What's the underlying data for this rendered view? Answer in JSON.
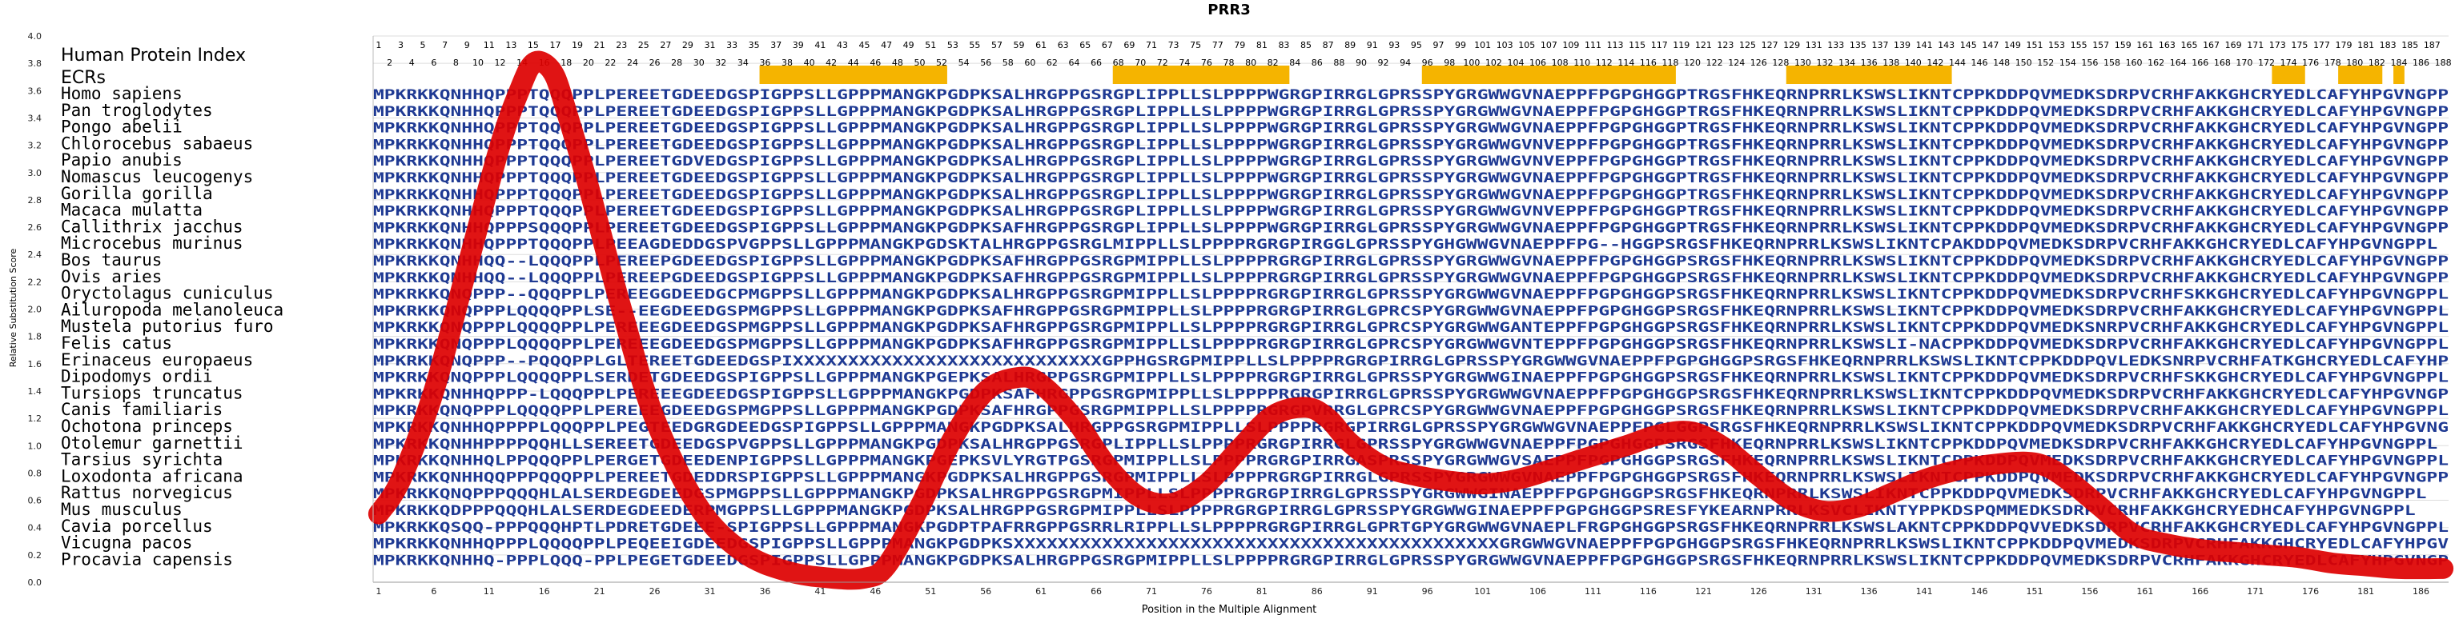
{
  "title": "PRR3",
  "xlabel": "Position in the Multiple Alignment",
  "ylabel": "Relative Substitution Score",
  "index_label": "Human Protein Index",
  "ecr_label": "ECRs",
  "colors": {
    "curve": "#dd0000",
    "ecr": "#f5b400",
    "seq_conserved": "#1f3a93",
    "seq_variable": "#1f63c6",
    "grid": "#dddddd"
  },
  "chart_data": {
    "type": "line",
    "title": "PRR3",
    "xlabel": "Position in the Multiple Alignment",
    "ylabel": "Relative Substitution Score",
    "ylim": [
      0,
      4.0
    ],
    "xlim": [
      1,
      188
    ],
    "yticks": [
      "0.0",
      "0.2",
      "0.4",
      "0.6",
      "0.8",
      "1.0",
      "1.2",
      "1.4",
      "1.6",
      "1.8",
      "2.0",
      "2.2",
      "2.4",
      "2.6",
      "2.8",
      "3.0",
      "3.2",
      "3.4",
      "3.6",
      "3.8",
      "4.0"
    ],
    "xticks": [
      1,
      6,
      11,
      16,
      21,
      26,
      31,
      36,
      41,
      46,
      51,
      56,
      61,
      66,
      71,
      76,
      81,
      86,
      91,
      96,
      101,
      106,
      111,
      116,
      121,
      126,
      131,
      136,
      141,
      146,
      151,
      156,
      161,
      166,
      171,
      176,
      181,
      186
    ],
    "grid": "on",
    "series": [
      {
        "x": [
          1,
          3,
          6,
          9,
          12,
          14,
          15,
          16,
          17,
          18,
          20,
          23,
          26,
          30,
          34,
          38,
          42,
          45,
          47,
          50,
          53,
          56,
          59,
          61,
          64,
          67,
          70,
          73,
          76,
          79,
          82,
          85,
          87,
          89,
          92,
          95,
          98,
          101,
          104,
          107,
          110,
          114,
          117,
          120,
          123,
          126,
          129,
          132,
          135,
          138,
          141,
          144,
          147,
          150,
          152,
          154,
          157,
          160,
          163,
          166,
          169,
          172,
          175,
          178,
          181,
          184,
          188
        ],
        "y": [
          0.5,
          0.75,
          1.4,
          2.3,
          3.2,
          3.65,
          3.8,
          3.8,
          3.7,
          3.45,
          2.9,
          2.0,
          1.2,
          0.55,
          0.22,
          0.08,
          0.03,
          0.03,
          0.12,
          0.55,
          1.05,
          1.4,
          1.5,
          1.45,
          1.2,
          0.85,
          0.62,
          0.58,
          0.72,
          0.98,
          1.22,
          1.28,
          1.2,
          1.02,
          0.85,
          0.78,
          0.74,
          0.72,
          0.75,
          0.82,
          0.9,
          1.0,
          1.08,
          1.1,
          0.98,
          0.78,
          0.6,
          0.52,
          0.55,
          0.65,
          0.75,
          0.82,
          0.86,
          0.88,
          0.85,
          0.75,
          0.55,
          0.35,
          0.28,
          0.24,
          0.22,
          0.2,
          0.18,
          0.14,
          0.12,
          0.1,
          0.1
        ]
      }
    ],
    "ecrs": [
      [
        36,
        52
      ],
      [
        68,
        83
      ],
      [
        96,
        118
      ],
      [
        129,
        143
      ],
      [
        173,
        175
      ],
      [
        179,
        182
      ],
      [
        184,
        184
      ]
    ]
  },
  "alignment": {
    "species": [
      "Homo sapiens",
      "Pan troglodytes",
      "Pongo abelii",
      "Chlorocebus sabaeus",
      "Papio anubis",
      "Nomascus leucogenys",
      "Gorilla gorilla",
      "Macaca mulatta",
      "Callithrix jacchus",
      "Microcebus murinus",
      "Bos taurus",
      "Ovis aries",
      "Oryctolagus cuniculus",
      "Ailuropoda melanoleuca",
      "Mustela putorius furo",
      "Felis catus",
      "Erinaceus europaeus",
      "Dipodomys ordii",
      "Tursiops truncatus",
      "Canis familiaris",
      "Ochotona princeps",
      "Otolemur garnettii",
      "Tarsius syrichta",
      "Loxodonta africana",
      "Rattus norvegicus",
      "Mus musculus",
      "Cavia porcellus",
      "Vicugna pacos",
      "Procavia capensis"
    ],
    "sequences": [
      "MPKRKKQNHHQPPPTQQQPPLPEREETGDEEDGSPIGPPSLLGPPPMANGKPGDPKSALHRGPPGSRGPLIPPLLSLPPPPWGRGPIRRGLGPRSSPYGRGWWGVNAEPPFPGPGHGGPTRGSFHKEQRNPRRLKSWSLIKNTCPPKDDPQVMEDKSDRPVCRHFAKKGHCRYEDLCAFYHPGVNGPPL",
      "MPKRKKQNHHQPPPTQQQPPLPEREETGDEEDGSPIGPPSLLGPPPMANGKPGDPKSALHRGPPGSRGPLIPPLLSLPPPPWGRGPIRRGLGPRSSPYGRGWWGVNAEPPFPGPGHGGPTRGSFHKEQRNPRRLKSWSLIKNTCPPKDDPQVMEDKSDRPVCRHFAKKGHCRYEDLCAFYHPGVNGPPL",
      "MPKRKKQNHHQPPPTQQQPPLPEREETGDEEDGSPIGPPSLLGPPPMANGKPGDPKSALHRGPPGSRGPLIPPLLSLPPPPWGRGPIRRGLGPRSSPYGRGWWGVNAEPPFPGPGHGGPTRGSFHKEQRNPRRLKSWSLIKNTCPPKDDPQVMEDKSDRPVCRHFAKKGHCRYEDLCAFYHPGVNGPPL",
      "MPKRKKQNHHQPPPTQQQPPLPEREETGDEEDGSPIGPPSLLGPPPMANGKPGDPKSALHRGPPGSRGPLIPPLLSLPPPPWGRGPIRRGLGPRSSPYGRGWWGVNVEPPFPGPGHGGPTRGSFHKEQRNPRRLKSWSLIKNTCPPKDDPQVMEDKSDRPVCRHFAKKGHCRYEDLCAFYHPGVNGPPL",
      "MPKRKKQNHHQPPPTQQQPPLPEREETGDVEDGSPIGPPSLLGPPPMANGKPGDPKSALHRGPPGSRGPLIPPLLSLPPPPWGRGPIRRGLGPRSSPYGRGWWGVNVEPPFPGPGHGGPTRGSFHKEQRNPRRLKSWSLIKNTCPPKDDPQVMEDKSDRPVCRHFAKKGHCRYEDLCAFYHPGVNGPPL",
      "MPKRKKQNHHQPPPTQQQPPLPEREETGDEEDGSPIGPPSLLGPPPMANGKPGDPKSALHRGPPGSRGPLIPPLLSLPPPPWGRGPIRRGLGPRSSPYGRGWWGVNAEPPFPGPGHGGPTRGSFHKEQRNPRRLKSWSLIKNTCPPKDDPQVMEDKSDRPVCRHFAKKGHCRYEDLCAFYHPGVNGPPL",
      "MPKRKKQNHHQPPPTQQQPPLPEREETGDEEDGSPIGPPSLLGPPPMANGKPGDPKSALHRGPPGSRGPLIPPLLSLPPPPWGRGPIRRGLGPRSSPYGRGWWGVNAEPPFPGPGHGGPTRGSFHKEQRNPRRLKSWSLIKNTCPPKDDPQVMEDKSDRPVCRHFAKKGHCRYEDLCAFYHPGVNGPPL",
      "MPKRKKQNHHQPPPTQQQPPLPEREETGDEEDGSPIGPPSLLGPPPMANGKPGDPKSALHRGPPGSRGPLIPPLLSLPPPPWGRGPIRRGLGPRSSPYGRGWWGVNVEPPFPGPGHGGPTRGSFHKEQRNPRRLKSWSLIKNTCPPKDDPQVMEDKSDRPVCRHFAKKGHCRYEDLCAFYHPGVNGPPL",
      "MPKRKKQNHHQPPPSQQQPPLPEREETGDEEDGSPIGPPSLLGPPPMANGKPGDPKSAFHRGPPGSRGPLIPPLLSLPPPPWGRGPIRRGLGPRSSPYGRGWWGVNAEPPFPGPGHGGPTRGSFHKEQRNPRRLKSWSLIKNTCPPKDDPQVMEDKSDRPVCRHFAKKGHCRYEDLCAFYHPGVNGPPL",
      "MPKRKKQNHHQPPPTQQQPPLPEEAGDEDDGSPVGPPSLLGPPPMANGKPGDSKTALHRGPPGSRGLMIPPLLSLPPPPRGRGPIRGGLGPRSSPYGHGWWGVNAEPPFPG--HGGPSRGSFHKEQRNPRRLKSWSLIKNTCPAKDDPQVMEDKSDRPVCRHFAKKGHCRYEDLCAFYHPGVNGPPL",
      "MPKRKKQNHHQQ--LQQQPPLPEREEPGDEEDGSPIGPPSLLGPPPMANGKPGDPKSAFHRGPPGSRGPMIPPLLSLPPPPRGRGPIRRGLGPRSSPYGRGWWGVNAEPPFPGPGHGGPSRGSFHKEQRNPRRLKSWSLIKNTCPPKDDPQVMEDKSDRPVCRHFAKKGHCRYEDLCAFYHPGVNGPPL",
      "MPKRKKQNHHQQ--LQQQPPLPEREEPGDEEDGSPIGPPSLLGPPPMANGKPGDPKSAFHRGPPGSRGPMIPPLLSLPPPPRGRGPIRRGLGPRSSPYGRGWWGVNAEPPFPGPGHGGPSRGSFHKEQRNPRRLKSWSLIKNTCPPKDDPQVMEDKSDRPVCRHFAKKGHCRYEDLCAFYHPGVNGPPL",
      "MPKRKKQNQPPP--QQQPPLPEREEGGDEEDGCPMGPPSLLGPPPMANGKPGDPKSALHRGPPGSRGPMIPPLLSLPPPPRGRGPIRRGLGPRSSPYGRGWWGVNAEPPFPGPGHGGPSRGSFHKEQRNPRRLKSWSLIKNTCPPKDDPQVMEDKSDRPVCRHFSKKGHCRYEDLCAFYHPGVNGPPL",
      "MPKRKKQNQPPPLQQQQPPLSE--EEGDEEDGSPMGPPSLLGPPPMANGKPGDPKSAFHRGPPGSRGPMIPPLLSLPPPPRGRGPIRRGLGPRCSPYGRGWWGVNAEPPFPGPGHGGPSRGSFHKEQRNPRRLKSWSLIKNTCPPKDDPQVMEDKSDRPVCRHFAKKGHCRYEDLCAFYHPGVNGPPL",
      "MPKRKKQNQPPPLQQQQPPLPEREEEGDEEDGSPMGPPSLLGPPPMANGKPGDPKSAFHRGPPGSRGPMIPPLLSLPPPPRGRGPIRRGLGPRCSPYGRGWWGANTEPPFPGPGHGGPSRGSFHKEQRNPRRLKSWSLIKNTCPPKDDPQVMEDKSNRPVCRHFAKKGHCRYEDLCAFYHPGVNGPPL",
      "MPKRKKQNQPPPLQQQQPPLPEREEEGDEEDGSPMGPPSLLGPPPMANGKPGDPKSAFHRGPPGSRGPMIPPLLSLPPPPRGRGPIRRGLGPRCSPYGRGWWGVNTEPPFPGPGHGGPSRGSFHKEQRNPRRLKSWSLI-NACPPKDDPQVMEDKSDRPVCRHFAKKGHCRYEDLCAFYHPGVNGPPL",
      "MPKRKKQNQPPP--PQQQPPLGLTEREETGDEEDGSPIXXXXXXXXXXXXXXXXXXXXXXXXXXXXGPPHGSRGPMIPPLLSLPPPPRGRGPIRRGLGPRSSPYGRGWWGVNAEPPFPGPGHGGPSRGSFHKEQRNPRRLKSWSLIKNTCPPKDDPQVLEDKSNRPVCRHFATKGHCRYEDLCAFYHPGVNGPPL",
      "MPKRKKQNQPPPLQQQQPPLSERDETGDEEDGSPIGPPSLLGPPPMANGKPGEPKSALHRGPPGSRGPMIPPLLSLPPPPRGRGPIRRGLGPRSSPYGRGWWGINAEPPFPGPGHGGPSRGSFHKEQRNPRRLKSWSLIKNTCPPKDDPQVMEDKSDRPVCRHFSKKGHCRYEDLCAFYHPGVNGPPL",
      "MPKRKKQNHHQPPP-LQQQPPLPEREEEGDEEDGSPIGPPSLLGPPPMANGKPGDPKSAFHRGPPGSRGPMIPPLLSLPPPPRGRGPIRRGLGPRSSPYGRGWWGVNAEPPFPGPGHGGPSRGSFHKEQRNPRRLKSWSLIKNTCPPKDDPQVMEDKSDRPVCRHFAKKGHCRYEDLCAFYHPGVNGPPL",
      "MPKRKKQNQPPPLQQQQPPLPEREEEGDEEDGSPMGPPSLLGPPPMANGKPGDPKSAFHRGPPGSRGPMIPPLLSLPPPPRGRGPVRRGLGPRCSPYGRGWWGVNAEPPFPGPGHGGPSRGSFHKEQRNPRRLKSWSLIKNTCPPKDDPQVMEDKSDRPVCRHFAKKGHCRYEDLCAFYHPGVNGPPL",
      "MPKRKKQNHHQPPPPLQQQPPLPEGTEEDGRGDEEDGSPIGPPSLLGPPPMANGKPGDPKSALHRGPPGSRGPMIPPLLSLPPPPRGRGPIRRGLGPRSSPYGRGWWGVNAEPPFPGLGGPSRGSFHKEQRNPRRLKSWSLIKNTCPPKDDPQVMEDKSDRPVCRHFAKKGHCRYEDLCAFYHPGVNGPPL",
      "MPKRKKQNHHPPPPQQHLLSEREETGDEEDGSPVGPPSLLGPPPMANGKPGDPKSALHRGPPGSRGPLIPPLLSLPPPPRGRGPIRRGLGPRSSPYGRGWWGVNAEPPFPGPGHGGPSRGSFHKEQRNPRRLKSWSLIKNTCPPKDDPQVMEDKSDRPVCRHFAKKGHCRYEDLCAFYHPGVNGPPL",
      "MPKRKKQNHHQLPPQQQPPLPERGETGDEEDENPIGPPSLLGPPPMANGKPGEPKSVLYRGTPGSRGPMIPPLLSLPPPPRGRGPIRRGASPRSSPYGRGWWGVSAEPPFPGPGHGGPSRGSFHKEQRNPRRLKSWSLIKNTCPPKDDPQVMEDKSDRPVCRHFAKKGHCRYEDLCAFYHPGVNGPPL",
      "MPKRKKQNHHQQPPPQQQPPLPEREETGDEDDRSPIGPPSLLGPPPMANGKPGDPKSALHRGPPGSRGPMIPPLLSLPPPPRGRGPIRRGLGPRSSPYGRGWWGVNAEPPFPGPGHGGPSRGSFHKEQRNPRRLKSWSLIKNTCPPKDDPQVMEDKSDRPVCRHFAKKGHCRYEDLCAFYHPGVNGPPL",
      "MPKRKKQNQPPPQQQHLALSERDEGDEEDGSPMGPPSLLGPPPMANGKPGDPKSALHRGPPGSRGPMIPPLLSLPPPPRGRGPIRRGLGPRSSPYGRGWWGINAEPPFPGPGHGGPSRGSFHKEQRNPRRLKSWSLIKNTCPPKDDPQVMEDKSDRPVCRHFAKKGHCRYEDLCAFYHPGVNGPPL",
      "MPKRKKQDPPPQQQHLALSERDEGDEEDERPMGPPSLLGPPPMANGKPGDPKSALHRGPPGSRGPMIPPLLSLPPPPRGRGPIRRGLGPRSSPYGRGWWGINAEPPFPGPGHGGPSRESFYKEARNPRRLKSVCLIKNTYPPKDSPQMMEDKSDRPVCRHFAKKGHCRYEDHCAFYHPGVNGPPL",
      "MPKRKKQSQQ-PPPQQQHPTLPDRETGDEEE-SPIGPPSLLGPPPMANGKPGDPTPAFRRGPPGSRRLRIPPLLSLPPPPRGRGPIRRGLGPRTGPYGRGWWGVNAEPLFRGPGHGGPSRGSFHKEQRNPRRLKSWSLAKNTCPPKDDPQVVEDKSDRPVCRHFAKKGHCRYEDLCAFYHPGVNGPPL",
      "MPKRKKQNHHQPPPLQQQQPPLPEQEEIGDEEDGSPIGPPSLLGPPPMANGKPGDPKSXXXXXXXXXXXXXXXXXXXXXXXXXXXXXXXXXXXXXXXXXXXXGRGWWGVNAEPPFPGPGHGGPSRGSFHKEQRNPRRLKSWSLIKNTCPPKDDPQVMEDKSDRPVCRHFAKKGHCRYEDLCAFYHPGVNGPPL",
      "MPKRKKQNHHQ-PPPLQQQ-PPLPEGETGDEEDGSPIGPPSLLGPPPMANGKPGDPKSALHRGPPGSRGPMIPPLLSLPPPPRGRGPIRRGLGPRSSPYGRGWWGVNAEPPFPGPGHGGPSRGSFHKEQRNPRRLKSWSLIKNTCPPKDDPQVMEDKSDRPVCRHFAKKGHCRYEDLCAFYHPGVNGPPL"
    ]
  }
}
